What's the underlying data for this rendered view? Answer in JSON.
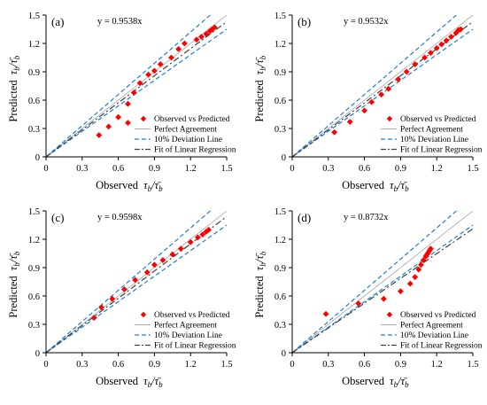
{
  "figure": {
    "panel_labels": [
      "(a)",
      "(b)",
      "(c)",
      "(d)"
    ],
    "x_axis_label": "Observed",
    "y_axis_label": "Predicted",
    "ratio_symbol": "τ",
    "ratio_sub": "b",
    "ratio_den": "τ̄",
    "legend": {
      "observed": "Observed vs Predicted",
      "perfect": "Perfect Agreement",
      "deviation": "10% Deviation Line",
      "fit": "Fit of Linear Regression"
    },
    "colors": {
      "points": "#ff0000",
      "perfect": "#b0b0b0",
      "deviation": "#1f7fd8",
      "fit": "#404040"
    }
  },
  "chart_data": [
    {
      "type": "scatter",
      "title": "(a)",
      "equation": "y = 0.9538x",
      "slope": 0.9538,
      "xlabel": "Observed τb/τ̄b",
      "ylabel": "Predicted τb/τ̄b",
      "xlim": [
        0,
        1.5
      ],
      "ylim": [
        0,
        1.5
      ],
      "xticks": [
        "0",
        "0.3",
        "0.6",
        "0.9",
        "1.2",
        "1.5"
      ],
      "yticks": [
        "0",
        "0.3",
        "0.6",
        "0.9",
        "1.2",
        "1.5"
      ],
      "legend_position": "bottom-right",
      "points": [
        [
          0.44,
          0.23
        ],
        [
          0.52,
          0.32
        ],
        [
          0.6,
          0.42
        ],
        [
          0.68,
          0.36
        ],
        [
          0.68,
          0.56
        ],
        [
          0.73,
          0.68
        ],
        [
          0.78,
          0.78
        ],
        [
          0.85,
          0.87
        ],
        [
          0.9,
          0.91
        ],
        [
          0.95,
          0.98
        ],
        [
          1.04,
          1.05
        ],
        [
          1.1,
          1.14
        ],
        [
          1.15,
          1.2
        ],
        [
          1.25,
          1.24
        ],
        [
          1.29,
          1.27
        ],
        [
          1.33,
          1.3
        ],
        [
          1.36,
          1.33
        ],
        [
          1.38,
          1.35
        ],
        [
          1.4,
          1.37
        ]
      ]
    },
    {
      "type": "scatter",
      "title": "(b)",
      "equation": "y = 0.9532x",
      "slope": 0.9532,
      "xlabel": "Observed τb/τ̄b",
      "ylabel": "Predicted τb/τ̄b",
      "xlim": [
        0,
        1.5
      ],
      "ylim": [
        0,
        1.5
      ],
      "xticks": [
        "0",
        "0.3",
        "0.6",
        "0.9",
        "1.2",
        "1.5"
      ],
      "yticks": [
        "0",
        "0.3",
        "0.6",
        "0.9",
        "1.2",
        "1.5"
      ],
      "legend_position": "bottom-right",
      "points": [
        [
          0.35,
          0.26
        ],
        [
          0.48,
          0.37
        ],
        [
          0.6,
          0.49
        ],
        [
          0.66,
          0.58
        ],
        [
          0.74,
          0.66
        ],
        [
          0.8,
          0.72
        ],
        [
          0.88,
          0.82
        ],
        [
          0.95,
          0.9
        ],
        [
          1.02,
          0.98
        ],
        [
          1.1,
          1.05
        ],
        [
          1.15,
          1.1
        ],
        [
          1.2,
          1.15
        ],
        [
          1.24,
          1.19
        ],
        [
          1.28,
          1.23
        ],
        [
          1.32,
          1.27
        ],
        [
          1.36,
          1.31
        ],
        [
          1.38,
          1.34
        ],
        [
          1.4,
          1.35
        ]
      ]
    },
    {
      "type": "scatter",
      "title": "(c)",
      "equation": "y = 0.9598x",
      "slope": 0.9598,
      "xlabel": "Observed τb/τ̄b",
      "ylabel": "Predicted τb/τ̄b",
      "xlim": [
        0,
        1.5
      ],
      "ylim": [
        0,
        1.5
      ],
      "xticks": [
        "0",
        "0.3",
        "0.6",
        "0.9",
        "1.2",
        "1.5"
      ],
      "yticks": [
        "0",
        "0.3",
        "0.6",
        "0.9",
        "1.2",
        "1.5"
      ],
      "legend_position": "bottom-right",
      "points": [
        [
          0.4,
          0.37
        ],
        [
          0.46,
          0.48
        ],
        [
          0.55,
          0.57
        ],
        [
          0.65,
          0.67
        ],
        [
          0.74,
          0.77
        ],
        [
          0.84,
          0.85
        ],
        [
          0.9,
          0.93
        ],
        [
          0.97,
          0.98
        ],
        [
          1.05,
          1.04
        ],
        [
          1.12,
          1.1
        ],
        [
          1.2,
          1.17
        ],
        [
          1.26,
          1.22
        ],
        [
          1.3,
          1.25
        ],
        [
          1.33,
          1.28
        ],
        [
          1.35,
          1.3
        ]
      ]
    },
    {
      "type": "scatter",
      "title": "(d)",
      "equation": "y = 0.8732x",
      "slope": 0.8732,
      "xlabel": "Observed τb/τ̄b",
      "ylabel": "Predicted τb/τ̄b",
      "xlim": [
        0,
        1.5
      ],
      "ylim": [
        0,
        1.5
      ],
      "xticks": [
        "0",
        "0.3",
        "0.6",
        "0.9",
        "1.2",
        "1.5"
      ],
      "yticks": [
        "0",
        "0.3",
        "0.6",
        "0.9",
        "1.2",
        "1.5"
      ],
      "legend_position": "bottom-right",
      "points": [
        [
          0.28,
          0.41
        ],
        [
          0.55,
          0.52
        ],
        [
          0.76,
          0.57
        ],
        [
          0.9,
          0.65
        ],
        [
          0.98,
          0.73
        ],
        [
          1.02,
          0.8
        ],
        [
          1.05,
          0.88
        ],
        [
          1.07,
          0.93
        ],
        [
          1.09,
          0.98
        ],
        [
          1.11,
          1.02
        ],
        [
          1.12,
          1.04
        ],
        [
          1.13,
          1.06
        ],
        [
          1.14,
          1.08
        ],
        [
          1.15,
          1.1
        ]
      ]
    }
  ]
}
